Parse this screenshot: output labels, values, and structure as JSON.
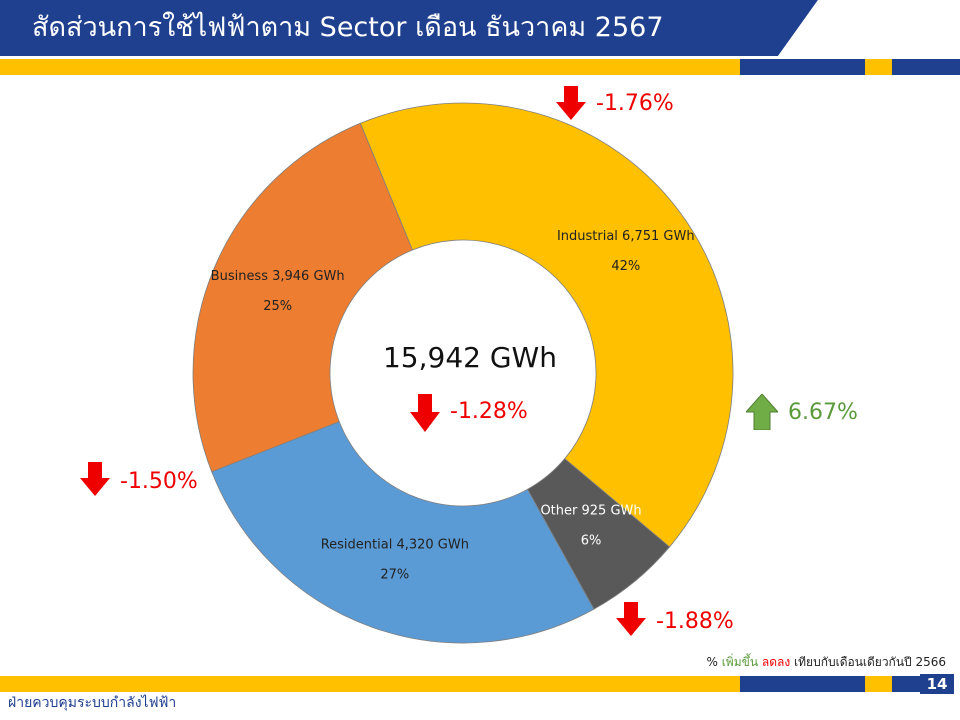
{
  "header": {
    "title": "สัดส่วนการใช้ไฟฟ้าตาม Sector เดือน ธันวาคม 2567"
  },
  "chart_data": {
    "type": "pie",
    "variant": "donut",
    "center_total": "15,942 GWh",
    "center_change": "-1.28%",
    "center_direction": "down",
    "slices": [
      {
        "name": "Industrial",
        "value": 6751,
        "unit": "GWh",
        "label_line1": "Industrial 6,751 GWh",
        "label_line2": "42%",
        "color": "#ffc000",
        "change": "-1.76%",
        "direction": "down"
      },
      {
        "name": "Other",
        "value": 925,
        "unit": "GWh",
        "label_line1": "Other 925 GWh",
        "label_line2": "6%",
        "color": "#595959",
        "change": "6.67%",
        "direction": "up"
      },
      {
        "name": "Residential",
        "value": 4320,
        "unit": "GWh",
        "label_line1": "Residential 4,320 GWh",
        "label_line2": "27%",
        "color": "#5b9bd5",
        "change": "-1.88%",
        "direction": "down"
      },
      {
        "name": "Business",
        "value": 3946,
        "unit": "GWh",
        "label_line1": "Business 3,946 GWh",
        "label_line2": "25%",
        "color": "#ed7d31",
        "change": "-1.50%",
        "direction": "down"
      }
    ]
  },
  "legend_note": {
    "prefix": "%",
    "increase": "เพิ่มขึ้น",
    "decrease": "ลดลง",
    "suffix": "เทียบกับเดือนเดียวกันปี 2566"
  },
  "footer": {
    "department": "ฝ่ายควบคุมระบบกำลังไฟฟ้า",
    "page_number": "14"
  },
  "colors": {
    "brand_blue": "#1f3f8f",
    "brand_yellow": "#ffc000",
    "increase": "#5a9a3a",
    "decrease": "#ee0000"
  }
}
